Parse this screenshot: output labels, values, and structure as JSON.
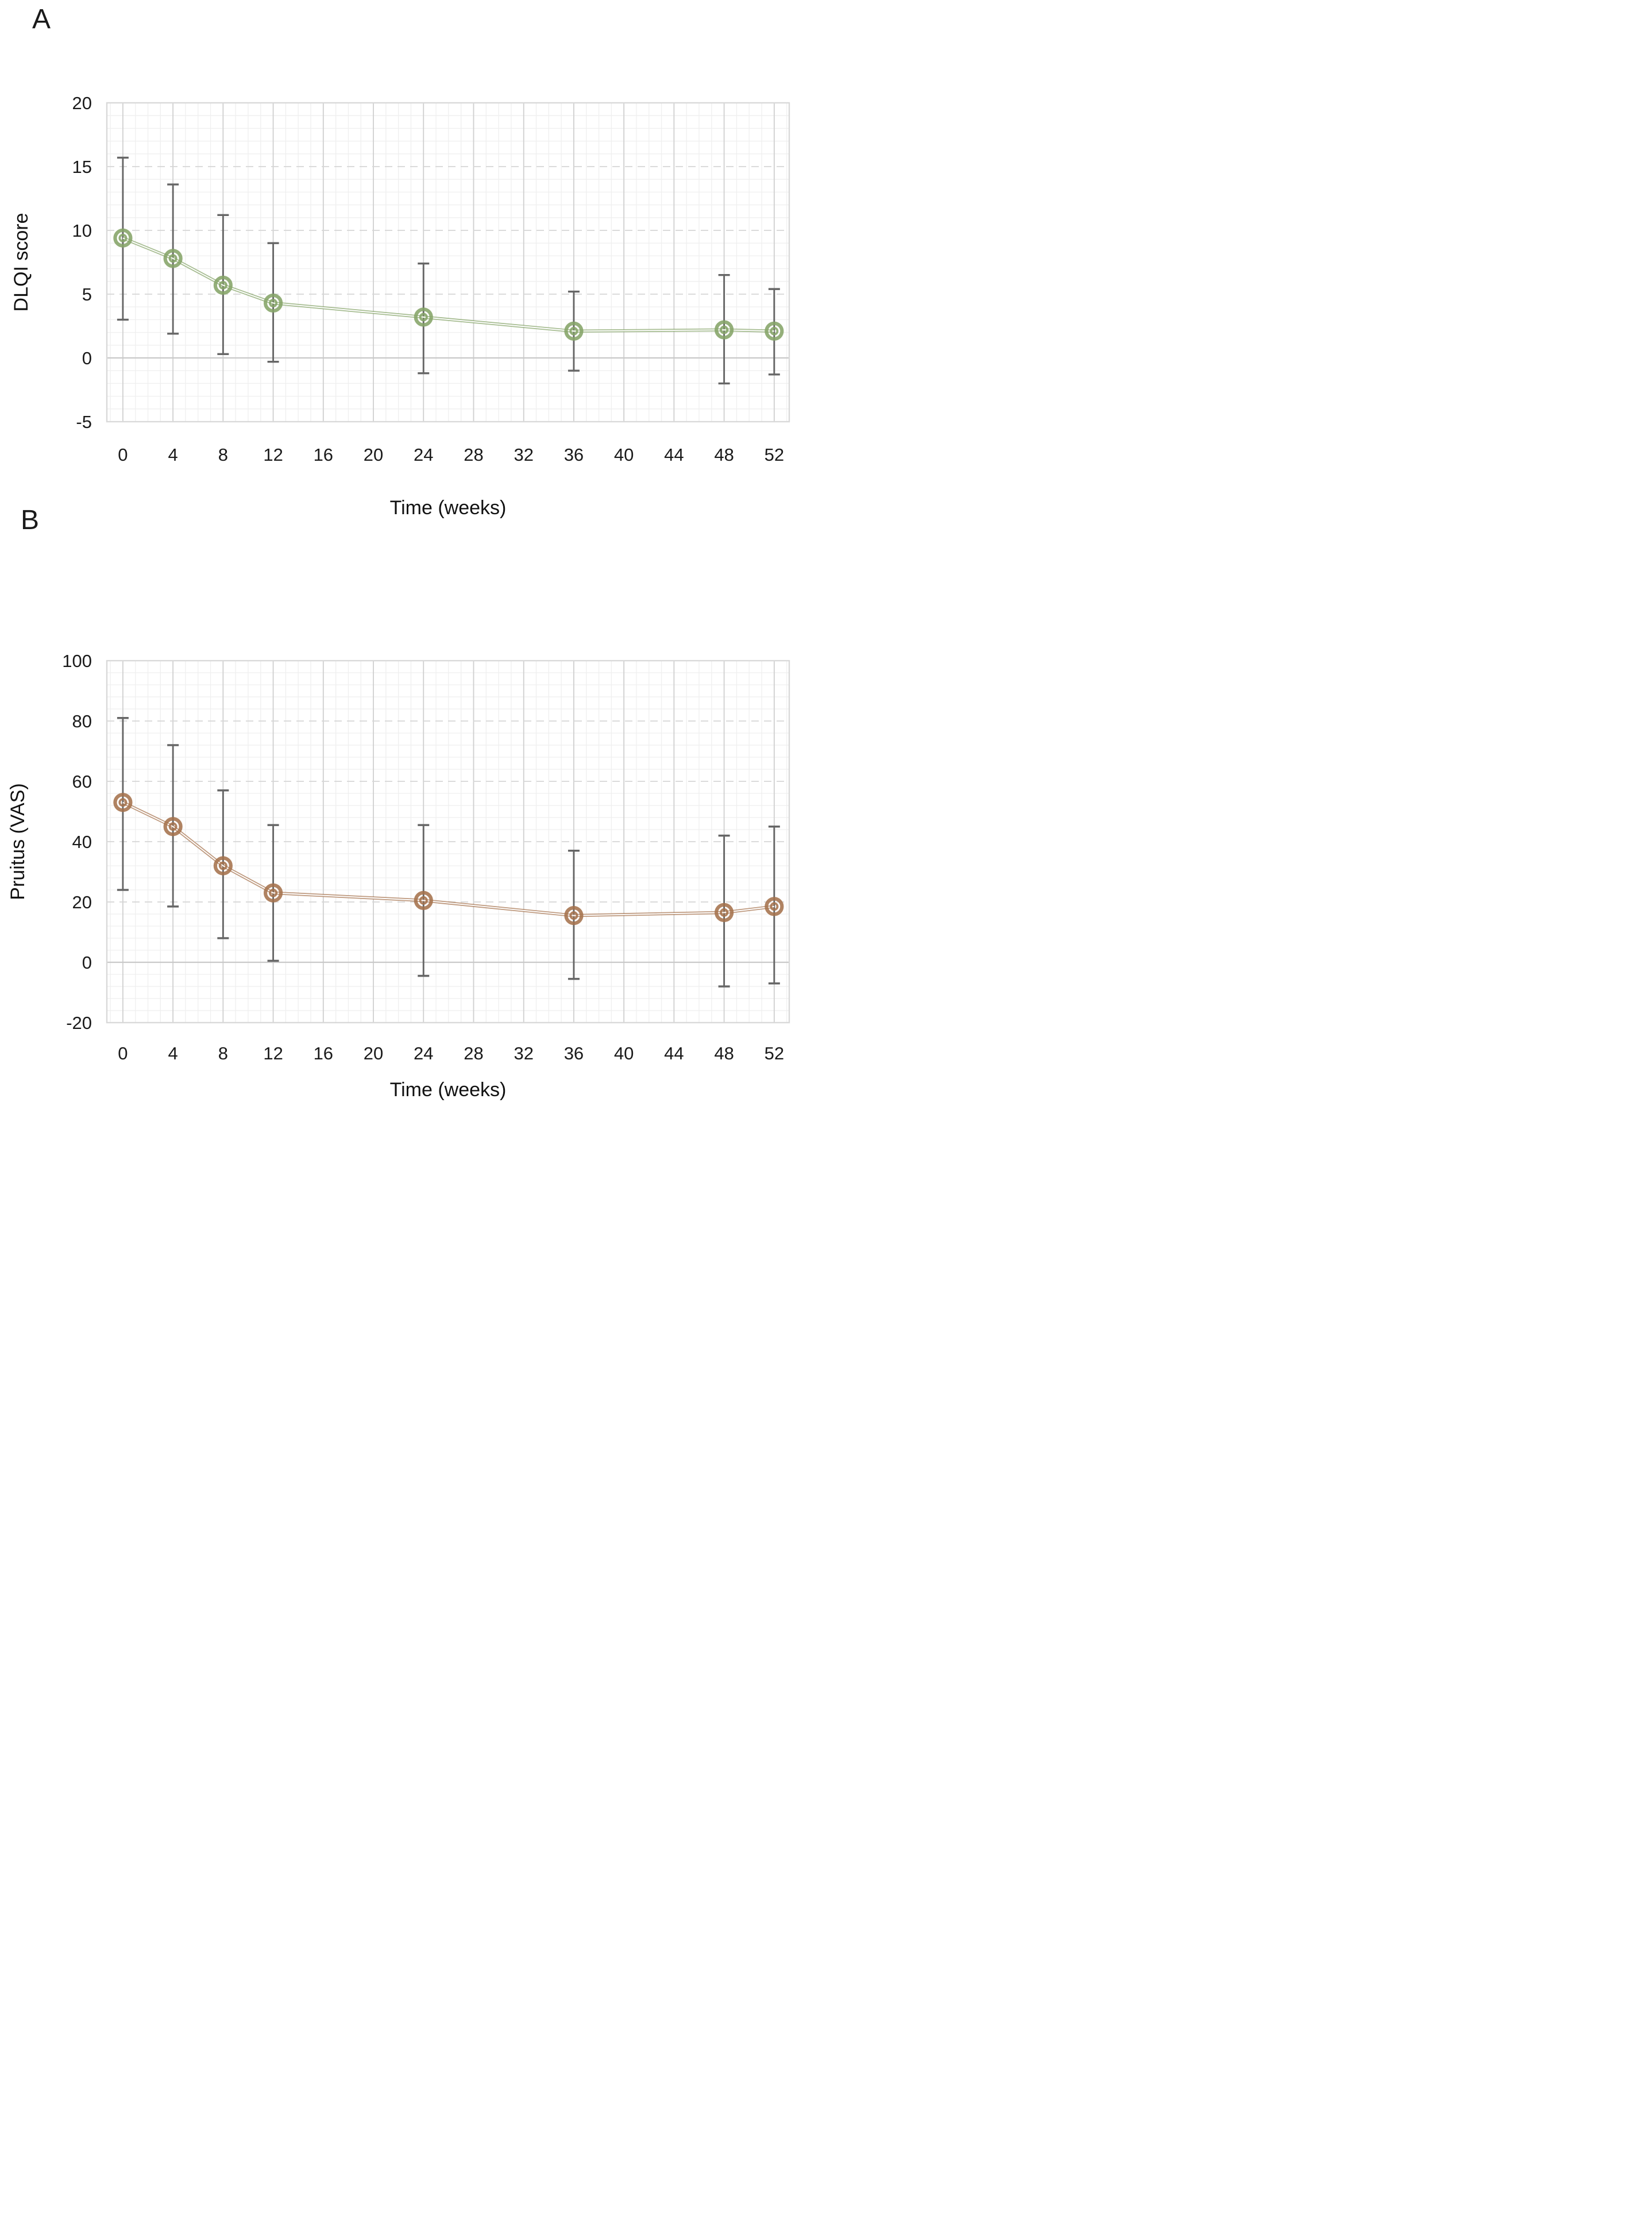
{
  "page": {
    "background": "#ffffff"
  },
  "panels": [
    {
      "letter": "A"
    },
    {
      "letter": "B"
    }
  ],
  "chart_data": [
    {
      "type": "line",
      "panel_label": "A",
      "title": "",
      "xlabel": "Time (weeks)",
      "ylabel": "DLQI score",
      "x": [
        0,
        4,
        8,
        12,
        24,
        36,
        48,
        52
      ],
      "series": [
        {
          "name": "DLQI score mean",
          "color": "#85a468",
          "values": [
            9.4,
            7.8,
            5.7,
            4.3,
            3.2,
            2.1,
            2.2,
            2.1
          ],
          "error_upper": [
            15.7,
            13.6,
            11.2,
            9.0,
            7.4,
            5.2,
            6.5,
            5.4
          ],
          "error_lower": [
            3.0,
            1.9,
            0.3,
            -0.3,
            -1.2,
            -1.0,
            -2.0,
            -1.3
          ]
        }
      ],
      "xticks": [
        0,
        4,
        8,
        12,
        16,
        20,
        24,
        28,
        32,
        36,
        40,
        44,
        48,
        52
      ],
      "yticks": [
        20,
        15,
        10,
        5,
        0,
        -5
      ],
      "xlim": [
        -1.28,
        53.2
      ],
      "ylim": [
        -5,
        20
      ],
      "minor_x_step": 1,
      "minor_y_step": 1,
      "major_y_step": 5,
      "grid": "minor+major",
      "legend": "none",
      "error_color": "#666666",
      "marker": "double-circle"
    },
    {
      "type": "line",
      "panel_label": "B",
      "title": "",
      "xlabel": "Time (weeks)",
      "ylabel": "Pruitus (VAS)",
      "x": [
        0,
        4,
        8,
        12,
        24,
        36,
        48,
        52
      ],
      "series": [
        {
          "name": "Pruitus VAS mean",
          "color": "#a5724c",
          "values": [
            53,
            45,
            32,
            23,
            20.5,
            15.5,
            16.5,
            18.5
          ],
          "error_upper": [
            81,
            72,
            57,
            45.5,
            45.5,
            37,
            42,
            45
          ],
          "error_lower": [
            24,
            18.5,
            8,
            0.5,
            -4.5,
            -5.5,
            -8,
            -7
          ]
        }
      ],
      "xticks": [
        0,
        4,
        8,
        12,
        16,
        20,
        24,
        28,
        32,
        36,
        40,
        44,
        48,
        52
      ],
      "yticks": [
        100,
        80,
        60,
        40,
        20,
        0,
        -20
      ],
      "xlim": [
        -1.28,
        53.2
      ],
      "ylim": [
        -20,
        100
      ],
      "minor_x_step": 1,
      "minor_y_step": 4,
      "major_y_step": 20,
      "grid": "minor+major",
      "legend": "none",
      "error_color": "#666666",
      "marker": "double-circle"
    }
  ],
  "style_colors": {
    "grid_minor": "#efefef",
    "grid_major_vertical": "#cfcfcf",
    "grid_major_horizontal_dashed": "#d6d6d6",
    "zero_line": "#c9c9c9",
    "plot_border": "#d9d9d9",
    "tick_label": "#1a1a1a"
  }
}
